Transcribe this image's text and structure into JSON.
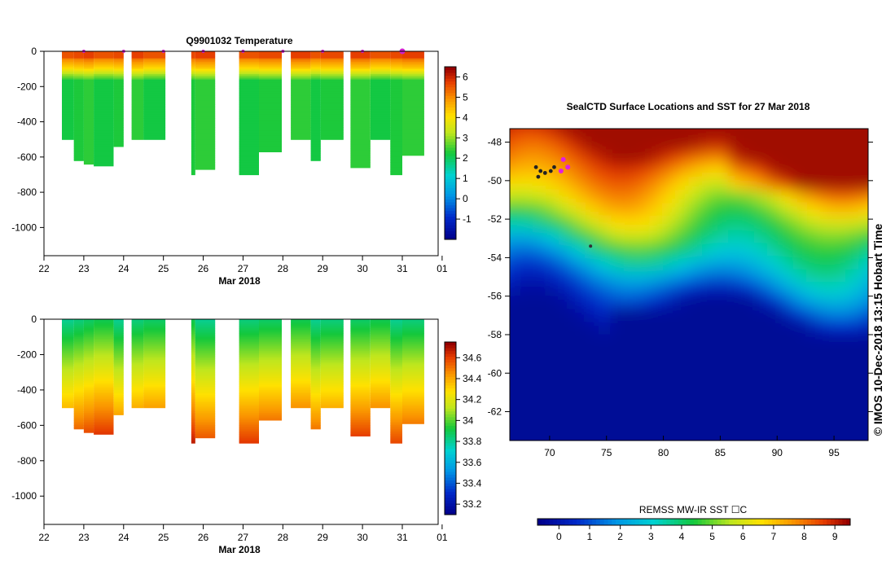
{
  "chart_data": [
    {
      "type": "heatmap",
      "title": "Q9901032  Temperature",
      "xlabel": "Mar 2018",
      "x_ticks": [
        "22",
        "23",
        "24",
        "25",
        "26",
        "27",
        "28",
        "29",
        "30",
        "31",
        "01"
      ],
      "y_ticks": [
        "0",
        "-200",
        "-400",
        "-600",
        "-800",
        "-1000"
      ],
      "ylim": [
        -1160,
        0
      ],
      "colorbar_ticks": [
        "-1",
        "0",
        "1",
        "2",
        "3",
        "4",
        "5",
        "6"
      ],
      "colorbar_range": [
        -2,
        6.5
      ],
      "surface_markers_day": [
        23,
        24,
        25,
        26,
        27,
        28,
        29,
        30,
        31
      ],
      "profiles": [
        {
          "day": 22.45,
          "depth": 500
        },
        {
          "day": 22.75,
          "depth": 620
        },
        {
          "day": 23.0,
          "depth": 635
        },
        {
          "day": 23.25,
          "depth": 650
        },
        {
          "day": 23.75,
          "depth": 540
        },
        {
          "day": 24.2,
          "depth": 500
        },
        {
          "day": 24.5,
          "depth": 500
        },
        {
          "day": 25.7,
          "depth": 700
        },
        {
          "day": 25.8,
          "depth": 670
        },
        {
          "day": 26.9,
          "depth": 700
        },
        {
          "day": 27.4,
          "depth": 570
        },
        {
          "day": 28.2,
          "depth": 500
        },
        {
          "day": 28.7,
          "depth": 620
        },
        {
          "day": 28.95,
          "depth": 500
        },
        {
          "day": 29.7,
          "depth": 660
        },
        {
          "day": 30.2,
          "depth": 500
        },
        {
          "day": 30.7,
          "depth": 700
        },
        {
          "day": 31.0,
          "depth": 590
        }
      ]
    },
    {
      "type": "heatmap",
      "title": "",
      "xlabel": "Mar 2018",
      "x_ticks": [
        "22",
        "23",
        "24",
        "25",
        "26",
        "27",
        "28",
        "29",
        "30",
        "31",
        "01"
      ],
      "y_ticks": [
        "0",
        "-200",
        "-400",
        "-600",
        "-800",
        "-1000"
      ],
      "ylim": [
        -1160,
        0
      ],
      "colorbar_ticks": [
        "33.2",
        "33.4",
        "33.6",
        "33.8",
        "34",
        "34.2",
        "34.4",
        "34.6"
      ],
      "colorbar_range": [
        33.1,
        34.75
      ]
    },
    {
      "type": "heatmap",
      "title": "SealCTD Surface Locations and SST for 27 Mar 2018",
      "x_ticks": [
        "70",
        "75",
        "80",
        "85",
        "90",
        "95"
      ],
      "y_ticks": [
        "-48",
        "-50",
        "-52",
        "-54",
        "-56",
        "-58",
        "-60",
        "-62"
      ],
      "xlim": [
        66.5,
        98
      ],
      "ylim": [
        -63.5,
        -47.3
      ],
      "colorbar_label": "REMSS MW-IR SST ☐C",
      "colorbar_ticks": [
        "0",
        "1",
        "2",
        "3",
        "4",
        "5",
        "6",
        "7",
        "8",
        "9"
      ],
      "colorbar_range": [
        -0.7,
        9.5
      ],
      "side_label": "©  IMOS 10-Dec-2018 13:15 Hobart Time"
    }
  ]
}
